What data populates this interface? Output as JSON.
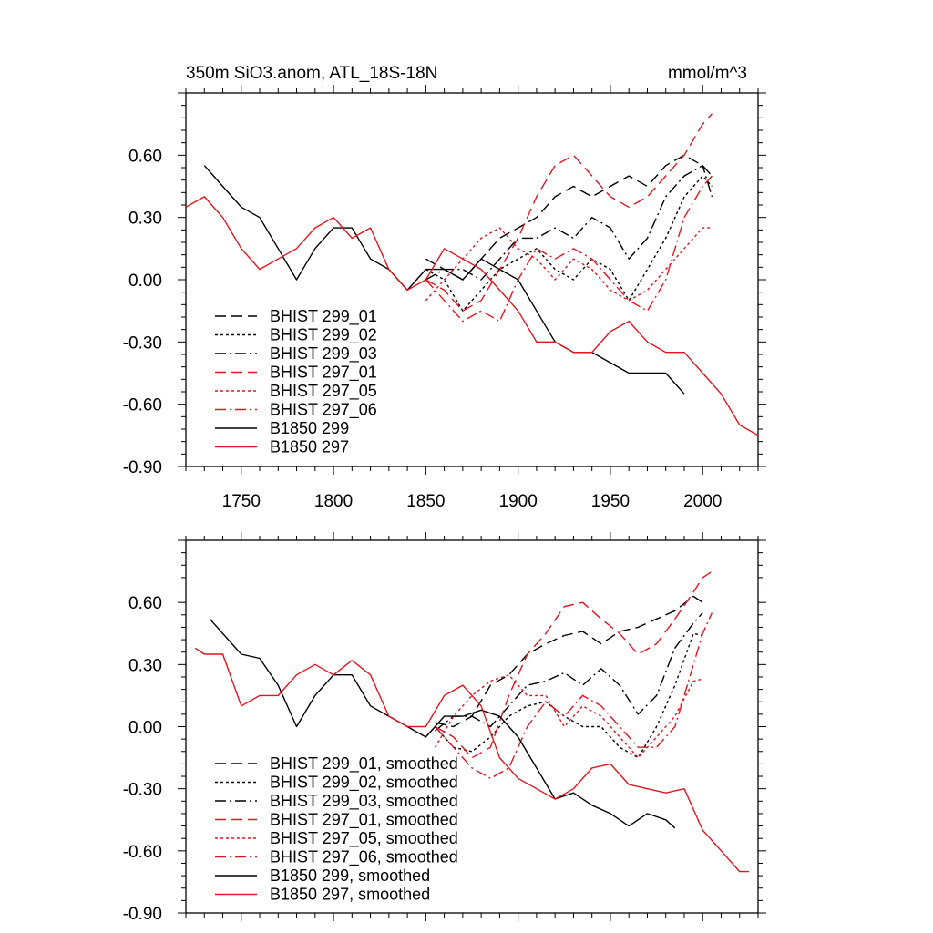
{
  "chart_data": [
    {
      "type": "line",
      "title": "350m SiO3.anom, ATL_18S-18N",
      "units": "mmol/m^3",
      "xlim": [
        1720,
        2030
      ],
      "ylim": [
        -0.9,
        0.9
      ],
      "x_ticks": [
        1750,
        1800,
        1850,
        1900,
        1950,
        2000
      ],
      "x_tick_labels": [
        "1750",
        "1800",
        "1850",
        "1900",
        "1950",
        "2000"
      ],
      "y_ticks": [
        0.6,
        0.3,
        0.0,
        -0.3,
        -0.6,
        -0.9
      ],
      "y_tick_labels": [
        "0.60",
        "0.30",
        "0.00",
        "-0.30",
        "-0.60",
        "-0.90"
      ],
      "legend": "bottom-left",
      "series": [
        {
          "name": "BHIST 299_01",
          "color": "#000000",
          "dash": "dashed",
          "x": [
            1850,
            1860,
            1870,
            1880,
            1890,
            1900,
            1910,
            1920,
            1930,
            1940,
            1950,
            1960,
            1970,
            1980,
            1990,
            2000,
            2005
          ],
          "y": [
            0.1,
            0.05,
            0.0,
            0.1,
            0.2,
            0.25,
            0.3,
            0.4,
            0.45,
            0.4,
            0.45,
            0.5,
            0.45,
            0.55,
            0.6,
            0.55,
            0.5
          ]
        },
        {
          "name": "BHIST 299_02",
          "color": "#000000",
          "dash": "dotted",
          "x": [
            1850,
            1860,
            1870,
            1880,
            1890,
            1900,
            1910,
            1920,
            1930,
            1940,
            1950,
            1960,
            1970,
            1980,
            1990,
            2000,
            2005
          ],
          "y": [
            0.05,
            0.0,
            -0.15,
            -0.05,
            0.05,
            0.1,
            0.15,
            0.05,
            0.0,
            0.1,
            0.05,
            -0.1,
            0.05,
            0.2,
            0.4,
            0.5,
            0.45
          ]
        },
        {
          "name": "BHIST 299_03",
          "color": "#000000",
          "dash": "dashdot",
          "x": [
            1850,
            1860,
            1870,
            1880,
            1890,
            1900,
            1910,
            1920,
            1930,
            1940,
            1950,
            1960,
            1970,
            1980,
            1990,
            2000,
            2005
          ],
          "y": [
            0.0,
            0.05,
            0.05,
            0.0,
            0.1,
            0.2,
            0.2,
            0.25,
            0.2,
            0.3,
            0.25,
            0.1,
            0.2,
            0.4,
            0.5,
            0.55,
            0.4
          ]
        },
        {
          "name": "BHIST 297_01",
          "color": "#e5141e",
          "dash": "dashed",
          "x": [
            1850,
            1860,
            1870,
            1880,
            1890,
            1900,
            1910,
            1920,
            1930,
            1940,
            1950,
            1960,
            1970,
            1980,
            1990,
            2000,
            2005
          ],
          "y": [
            0.0,
            -0.05,
            -0.15,
            -0.1,
            0.05,
            0.2,
            0.4,
            0.55,
            0.6,
            0.5,
            0.4,
            0.35,
            0.4,
            0.5,
            0.6,
            0.75,
            0.8
          ]
        },
        {
          "name": "BHIST 297_05",
          "color": "#e5141e",
          "dash": "dotted",
          "x": [
            1850,
            1860,
            1870,
            1880,
            1890,
            1900,
            1910,
            1920,
            1930,
            1940,
            1950,
            1960,
            1970,
            1980,
            1990,
            2000,
            2005
          ],
          "y": [
            -0.1,
            0.0,
            0.1,
            0.2,
            0.25,
            0.15,
            0.1,
            0.0,
            0.1,
            0.05,
            -0.05,
            -0.1,
            -0.05,
            0.05,
            0.15,
            0.25,
            0.25
          ]
        },
        {
          "name": "BHIST 297_06",
          "color": "#e5141e",
          "dash": "dashdot",
          "x": [
            1850,
            1860,
            1870,
            1880,
            1890,
            1900,
            1910,
            1920,
            1930,
            1940,
            1950,
            1960,
            1970,
            1980,
            1990,
            2000,
            2005
          ],
          "y": [
            0.0,
            -0.1,
            -0.2,
            -0.15,
            -0.2,
            0.0,
            0.15,
            0.1,
            0.15,
            0.1,
            0.0,
            -0.1,
            -0.15,
            0.0,
            0.3,
            0.45,
            0.5
          ]
        },
        {
          "name": "B1850 299",
          "color": "#000000",
          "dash": "solid",
          "x": [
            1730,
            1740,
            1750,
            1760,
            1770,
            1780,
            1790,
            1800,
            1810,
            1820,
            1830,
            1840,
            1850,
            1860,
            1870,
            1880,
            1890,
            1900,
            1910,
            1920,
            1930,
            1940,
            1950,
            1960,
            1970,
            1980,
            1990
          ],
          "y": [
            0.55,
            0.45,
            0.35,
            0.3,
            0.15,
            0.0,
            0.15,
            0.25,
            0.25,
            0.1,
            0.05,
            -0.05,
            0.05,
            0.05,
            0.0,
            0.1,
            0.05,
            0.0,
            -0.15,
            -0.3,
            -0.35,
            -0.35,
            -0.4,
            -0.45,
            -0.45,
            -0.45,
            -0.55
          ]
        },
        {
          "name": "B1850 297",
          "color": "#e5141e",
          "dash": "solid",
          "x": [
            1720,
            1730,
            1740,
            1750,
            1760,
            1770,
            1780,
            1790,
            1800,
            1810,
            1820,
            1830,
            1840,
            1850,
            1860,
            1870,
            1880,
            1890,
            1900,
            1910,
            1920,
            1930,
            1940,
            1950,
            1960,
            1970,
            1980,
            1990,
            2000,
            2010,
            2020,
            2030
          ],
          "y": [
            0.35,
            0.4,
            0.3,
            0.15,
            0.05,
            0.1,
            0.15,
            0.25,
            0.3,
            0.2,
            0.25,
            0.05,
            -0.05,
            0.0,
            0.15,
            0.1,
            0.05,
            -0.05,
            -0.15,
            -0.3,
            -0.3,
            -0.35,
            -0.35,
            -0.25,
            -0.2,
            -0.3,
            -0.35,
            -0.35,
            -0.45,
            -0.55,
            -0.7,
            -0.75
          ]
        }
      ]
    },
    {
      "type": "line",
      "title": "",
      "xlim": [
        1720,
        2030
      ],
      "ylim": [
        -0.9,
        0.9
      ],
      "y_ticks": [
        0.6,
        0.3,
        0.0,
        -0.3,
        -0.6,
        -0.9
      ],
      "y_tick_labels": [
        "0.60",
        "0.30",
        "0.00",
        "-0.30",
        "-0.60",
        "-0.90"
      ],
      "legend": "bottom-left",
      "series": [
        {
          "name": "BHIST 299_01, smoothed",
          "color": "#000000",
          "dash": "dashed",
          "x": [
            1855,
            1865,
            1875,
            1885,
            1895,
            1905,
            1915,
            1925,
            1935,
            1945,
            1955,
            1965,
            1975,
            1985,
            1995,
            2000
          ],
          "y": [
            0.02,
            0.0,
            0.05,
            0.2,
            0.25,
            0.35,
            0.4,
            0.44,
            0.46,
            0.4,
            0.46,
            0.48,
            0.52,
            0.56,
            0.63,
            0.6
          ]
        },
        {
          "name": "BHIST 299_02, smoothed",
          "color": "#000000",
          "dash": "dotted",
          "x": [
            1855,
            1865,
            1875,
            1885,
            1895,
            1905,
            1915,
            1925,
            1935,
            1945,
            1955,
            1965,
            1975,
            1985,
            1995,
            2000
          ],
          "y": [
            0.0,
            -0.1,
            -0.12,
            -0.05,
            0.05,
            0.1,
            0.12,
            0.05,
            0.0,
            0.0,
            -0.1,
            -0.15,
            0.0,
            0.2,
            0.45,
            0.44
          ]
        },
        {
          "name": "BHIST 299_03, smoothed",
          "color": "#000000",
          "dash": "dashdot",
          "x": [
            1855,
            1865,
            1875,
            1885,
            1895,
            1905,
            1915,
            1925,
            1935,
            1945,
            1955,
            1965,
            1975,
            1985,
            1995,
            2000
          ],
          "y": [
            -0.02,
            0.05,
            0.05,
            0.0,
            0.1,
            0.2,
            0.22,
            0.26,
            0.2,
            0.28,
            0.2,
            0.06,
            0.15,
            0.38,
            0.5,
            0.55
          ]
        },
        {
          "name": "BHIST 297_01, smoothed",
          "color": "#e5141e",
          "dash": "dashed",
          "x": [
            1855,
            1865,
            1875,
            1885,
            1895,
            1905,
            1915,
            1925,
            1935,
            1945,
            1955,
            1965,
            1975,
            1985,
            1995,
            2000,
            2005
          ],
          "y": [
            0.0,
            -0.05,
            -0.15,
            -0.1,
            0.15,
            0.35,
            0.45,
            0.58,
            0.6,
            0.52,
            0.45,
            0.35,
            0.4,
            0.52,
            0.65,
            0.72,
            0.75
          ]
        },
        {
          "name": "BHIST 297_05, smoothed",
          "color": "#e5141e",
          "dash": "dotted",
          "x": [
            1855,
            1865,
            1875,
            1885,
            1895,
            1905,
            1915,
            1925,
            1935,
            1945,
            1955,
            1965,
            1975,
            1985,
            1995,
            2000
          ],
          "y": [
            -0.1,
            0.05,
            0.15,
            0.22,
            0.25,
            0.15,
            0.15,
            0.0,
            0.1,
            0.05,
            -0.05,
            -0.15,
            -0.05,
            0.05,
            0.22,
            0.23
          ]
        },
        {
          "name": "BHIST 297_06, smoothed",
          "color": "#e5141e",
          "dash": "dashdot",
          "x": [
            1855,
            1865,
            1875,
            1885,
            1895,
            1905,
            1915,
            1925,
            1935,
            1945,
            1955,
            1965,
            1975,
            1985,
            1995,
            2000,
            2005
          ],
          "y": [
            0.0,
            -0.1,
            -0.2,
            -0.25,
            -0.2,
            0.0,
            0.12,
            0.05,
            0.15,
            0.1,
            0.0,
            -0.1,
            -0.1,
            0.0,
            0.3,
            0.45,
            0.55
          ]
        },
        {
          "name": "B1850 299, smoothed",
          "color": "#000000",
          "dash": "solid",
          "x": [
            1733,
            1740,
            1750,
            1760,
            1770,
            1780,
            1790,
            1800,
            1810,
            1820,
            1830,
            1840,
            1850,
            1860,
            1870,
            1880,
            1890,
            1900,
            1910,
            1920,
            1930,
            1940,
            1950,
            1960,
            1970,
            1980,
            1985
          ],
          "y": [
            0.52,
            0.45,
            0.35,
            0.33,
            0.2,
            0.0,
            0.15,
            0.25,
            0.25,
            0.1,
            0.05,
            0.0,
            -0.05,
            0.05,
            0.05,
            0.08,
            0.05,
            -0.05,
            -0.2,
            -0.35,
            -0.32,
            -0.38,
            -0.42,
            -0.48,
            -0.42,
            -0.45,
            -0.49
          ]
        },
        {
          "name": "B1850 297, smoothed",
          "color": "#e5141e",
          "dash": "solid",
          "x": [
            1725,
            1730,
            1740,
            1750,
            1760,
            1770,
            1780,
            1790,
            1800,
            1810,
            1820,
            1830,
            1840,
            1850,
            1860,
            1870,
            1880,
            1890,
            1900,
            1910,
            1920,
            1930,
            1940,
            1950,
            1960,
            1970,
            1980,
            1990,
            2000,
            2010,
            2020,
            2025
          ],
          "y": [
            0.38,
            0.35,
            0.35,
            0.1,
            0.15,
            0.15,
            0.25,
            0.3,
            0.25,
            0.32,
            0.25,
            0.05,
            0.0,
            0.0,
            0.15,
            0.2,
            0.1,
            -0.15,
            -0.25,
            -0.3,
            -0.35,
            -0.3,
            -0.2,
            -0.18,
            -0.28,
            -0.3,
            -0.32,
            -0.3,
            -0.5,
            -0.6,
            -0.7,
            -0.7
          ]
        }
      ]
    }
  ]
}
